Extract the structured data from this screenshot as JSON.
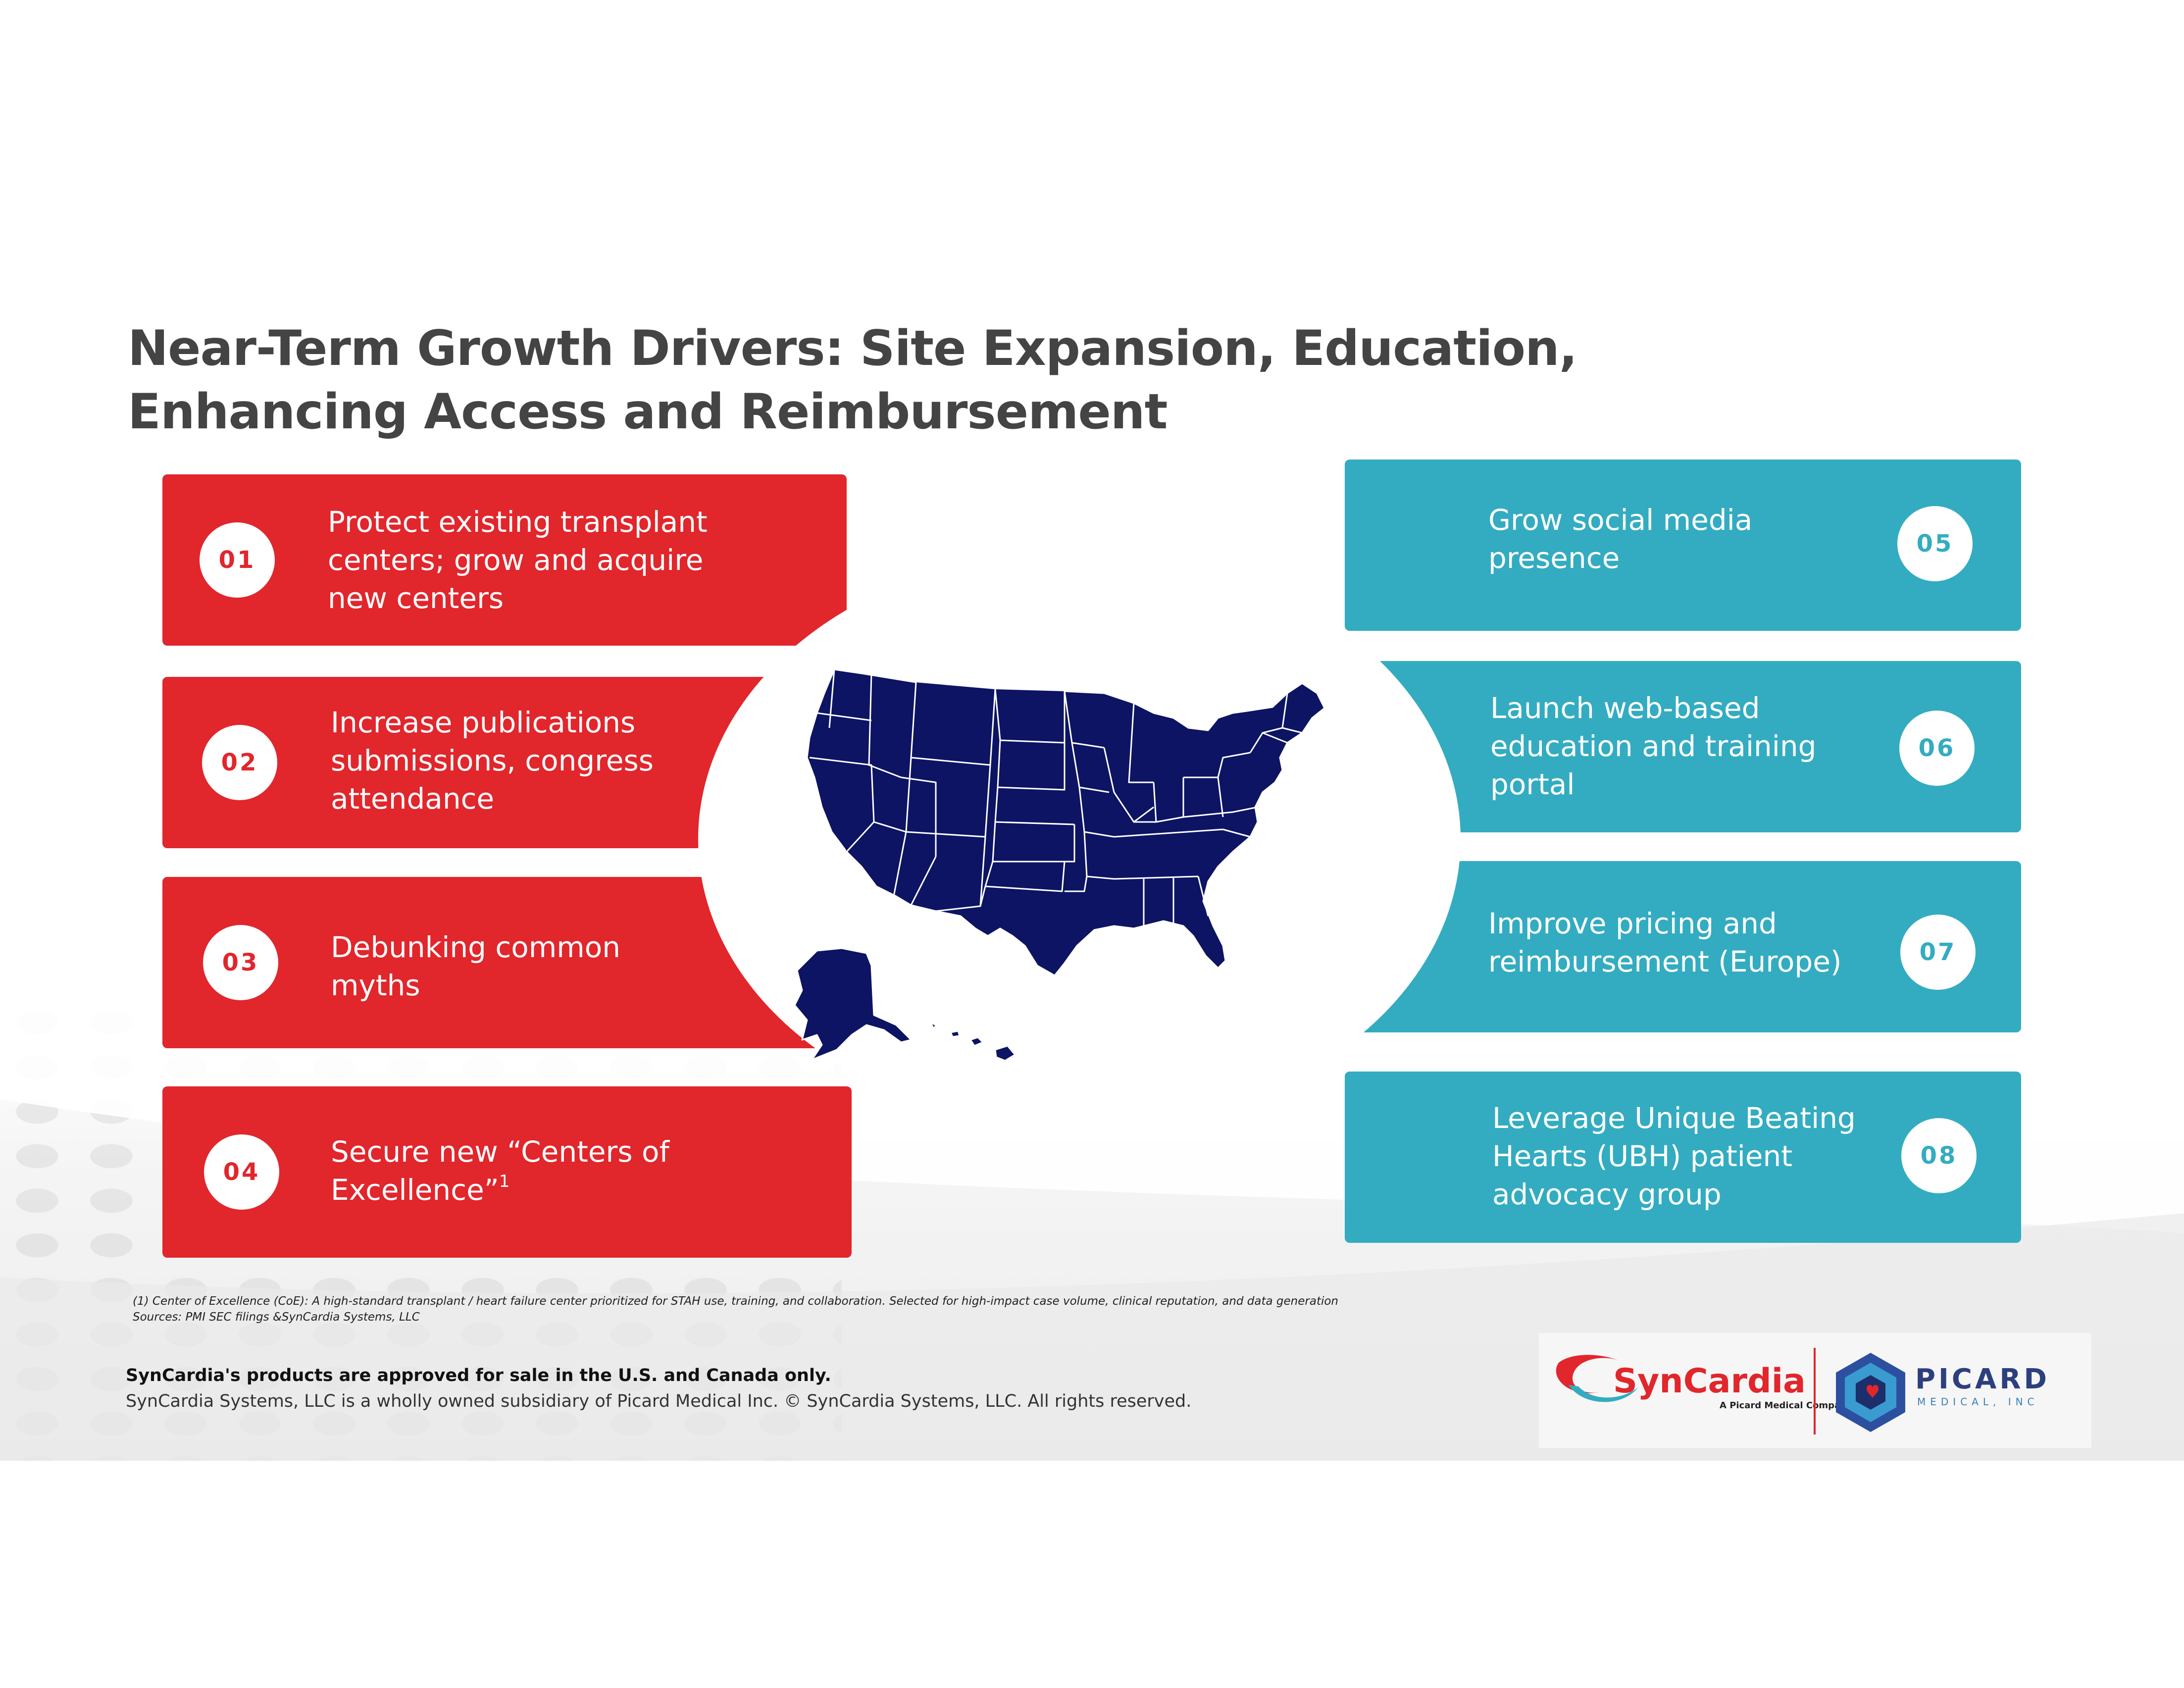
{
  "title": {
    "line1": "Near-Term Growth Drivers: Site Expansion, Education,",
    "line2": "Enhancing Access and Reimbursement"
  },
  "left_items": [
    {
      "number": "01",
      "lines": [
        "Protect existing transplant",
        "centers; grow and acquire",
        "new centers"
      ]
    },
    {
      "number": "02",
      "lines": [
        "Increase publications",
        "submissions, congress",
        "attendance"
      ]
    },
    {
      "number": "03",
      "lines": [
        "Debunking common",
        "myths"
      ]
    },
    {
      "number": "04",
      "lines": [
        "Secure new “Centers of",
        "Excellence”"
      ],
      "superscript": "1"
    }
  ],
  "right_items": [
    {
      "number": "05",
      "lines": [
        "Grow social media",
        "presence"
      ]
    },
    {
      "number": "06",
      "lines": [
        "Launch web-based",
        "education and training",
        "portal"
      ]
    },
    {
      "number": "07",
      "lines": [
        "Improve pricing and",
        "reimbursement (Europe)"
      ]
    },
    {
      "number": "08",
      "lines": [
        "Leverage Unique Beating",
        "Hearts (UBH) patient",
        "advocacy group"
      ]
    }
  ],
  "map": {
    "icon": "us-map-icon",
    "color": "#0d1463",
    "border_color": "#ffffff"
  },
  "footnotes": {
    "line1": "(1) Center of Excellence (CoE): A high-standard transplant / heart failure center prioritized for STAH use, training, and collaboration. Selected for high-impact case volume, clinical reputation, and data generation",
    "line2": "Sources: PMI SEC filings &SynCardia Systems, LLC"
  },
  "legal": {
    "approval": "SynCardia's products are approved for sale in the U.S. and Canada only.",
    "ownership": "SynCardia Systems, LLC is a wholly owned subsidiary of Picard Medical Inc. © SynCardia Systems, LLC. All rights reserved."
  },
  "logos": {
    "syncardia": "SynCardia",
    "syncardia_tagline": "A Picard Medical Company",
    "picard": "PICARD",
    "picard_sub": "MEDICAL, INC"
  },
  "colors": {
    "red": "#e1262c",
    "teal": "#33acc1",
    "title": "#444444",
    "navy": "#0d1463"
  }
}
